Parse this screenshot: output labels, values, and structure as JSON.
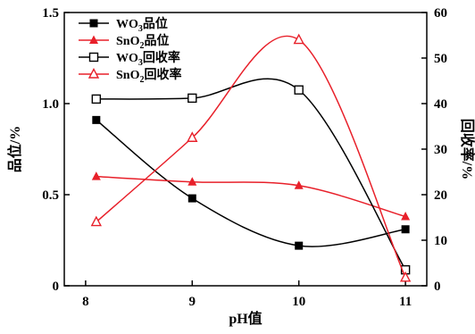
{
  "chart_data": {
    "type": "line",
    "x": [
      8.1,
      9,
      10,
      11
    ],
    "xlabel": "pH值",
    "ylabel_left": "品位/%",
    "ylabel_right": "回收率/%",
    "xlim": [
      7.8,
      11.2
    ],
    "xticks": [
      "8",
      "9",
      "10",
      "11"
    ],
    "ylim_left": [
      0,
      1.5
    ],
    "yticks_left": [
      "0",
      "0.5",
      "1.0",
      "1.5"
    ],
    "ylim_right": [
      0,
      60
    ],
    "yticks_right": [
      "0",
      "10",
      "20",
      "30",
      "40",
      "50",
      "60"
    ],
    "grid": false,
    "legend_position": "top-left",
    "series": [
      {
        "name": "WO3品位",
        "label_main": "WO",
        "label_sub": "3",
        "label_tail": "品位",
        "axis": "left",
        "color": "#000000",
        "marker": "filled-square",
        "values": [
          0.91,
          0.48,
          0.22,
          0.31
        ]
      },
      {
        "name": "SnO2品位",
        "label_main": "SnO",
        "label_sub": "2",
        "label_tail": "品位",
        "axis": "left",
        "color": "#e8202a",
        "marker": "filled-triangle",
        "values": [
          0.6,
          0.57,
          0.55,
          0.38
        ]
      },
      {
        "name": "WO3回收率",
        "label_main": "WO",
        "label_sub": "3",
        "label_tail": "回收率",
        "axis": "right",
        "color": "#000000",
        "marker": "open-square",
        "values": [
          41,
          41.2,
          43,
          3.5
        ]
      },
      {
        "name": "SnO2回收率",
        "label_main": "SnO",
        "label_sub": "2",
        "label_tail": "回收率",
        "axis": "right",
        "color": "#e8202a",
        "marker": "open-triangle",
        "values": [
          14,
          32.5,
          54,
          1.8
        ]
      }
    ]
  }
}
